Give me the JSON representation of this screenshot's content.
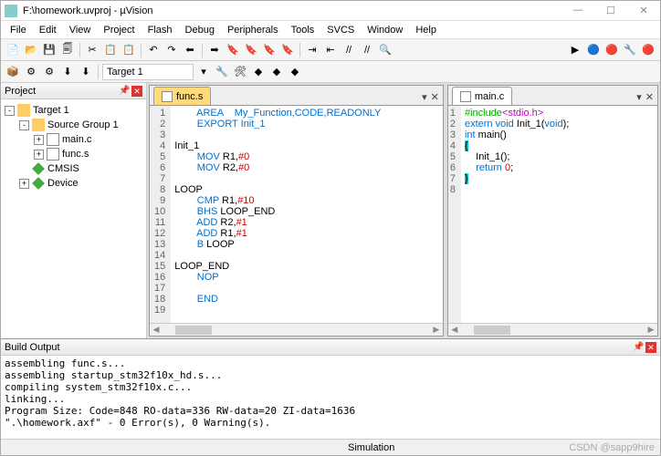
{
  "title": "F:\\homework.uvproj - µVision",
  "menu": [
    "File",
    "Edit",
    "View",
    "Project",
    "Flash",
    "Debug",
    "Peripherals",
    "Tools",
    "SVCS",
    "Window",
    "Help"
  ],
  "toolbar1": {
    "icons": [
      "📄",
      "📂",
      "💾",
      "🗐",
      "✂",
      "📋",
      "📋",
      "↶",
      "↷",
      "⬅",
      "➡",
      "🔖",
      "🔖",
      "🔖",
      "🔖",
      "⇥",
      "⇤",
      "//",
      "//",
      "🔍"
    ],
    "right_icons": [
      "▶",
      "🔵",
      "🔴",
      "🔧",
      "🔴"
    ]
  },
  "toolbar2": {
    "icons": [
      "📦",
      "⚙",
      "⚙",
      "⬇",
      "⬇"
    ],
    "target_label": "Target 1",
    "post_icons": [
      "🔧",
      "🛠",
      "◆",
      "◆",
      "◆"
    ]
  },
  "project_panel": {
    "title": "Project"
  },
  "tree": {
    "root": "Target 1",
    "group": "Source Group 1",
    "files": [
      "main.c",
      "func.s"
    ],
    "libs": [
      "CMSIS",
      "Device"
    ]
  },
  "editor_left": {
    "tab": "func.s",
    "lines": 19,
    "code": [
      {
        "n": 1,
        "t": "        AREA    My_Function,CODE,READONLY",
        "cls": "kw"
      },
      {
        "n": 2,
        "t": "        EXPORT Init_1",
        "cls": "kw"
      },
      {
        "n": 3,
        "t": ""
      },
      {
        "n": 4,
        "t": "Init_1"
      },
      {
        "n": 5,
        "t": "        MOV R1,#0",
        "mov": true
      },
      {
        "n": 6,
        "t": "        MOV R2,#0",
        "mov": true
      },
      {
        "n": 7,
        "t": ""
      },
      {
        "n": 8,
        "t": "LOOP"
      },
      {
        "n": 9,
        "t": "        CMP R1,#10",
        "cmp": true
      },
      {
        "n": 10,
        "t": "        BHS LOOP_END",
        "bhs": true
      },
      {
        "n": 11,
        "t": "        ADD R2,#1",
        "add": true
      },
      {
        "n": 12,
        "t": "        ADD R1,#1",
        "add": true
      },
      {
        "n": 13,
        "t": "        B LOOP",
        "b": true
      },
      {
        "n": 14,
        "t": ""
      },
      {
        "n": 15,
        "t": "LOOP_END"
      },
      {
        "n": 16,
        "t": "        NOP",
        "nop": true
      },
      {
        "n": 17,
        "t": ""
      },
      {
        "n": 18,
        "t": "        END",
        "end": true
      },
      {
        "n": 19,
        "t": ""
      }
    ]
  },
  "editor_right": {
    "tab": "main.c",
    "lines": 8
  },
  "build_output": {
    "title": "Build Output",
    "text": "assembling func.s...\nassembling startup_stm32f10x_hd.s...\ncompiling system_stm32f10x.c...\nlinking...\nProgram Size: Code=848 RO-data=336 RW-data=20 ZI-data=1636\n\".\\homework.axf\" - 0 Error(s), 0 Warning(s)."
  },
  "status": {
    "mode": "Simulation",
    "watermark": "CSDN @sapp9hire"
  }
}
